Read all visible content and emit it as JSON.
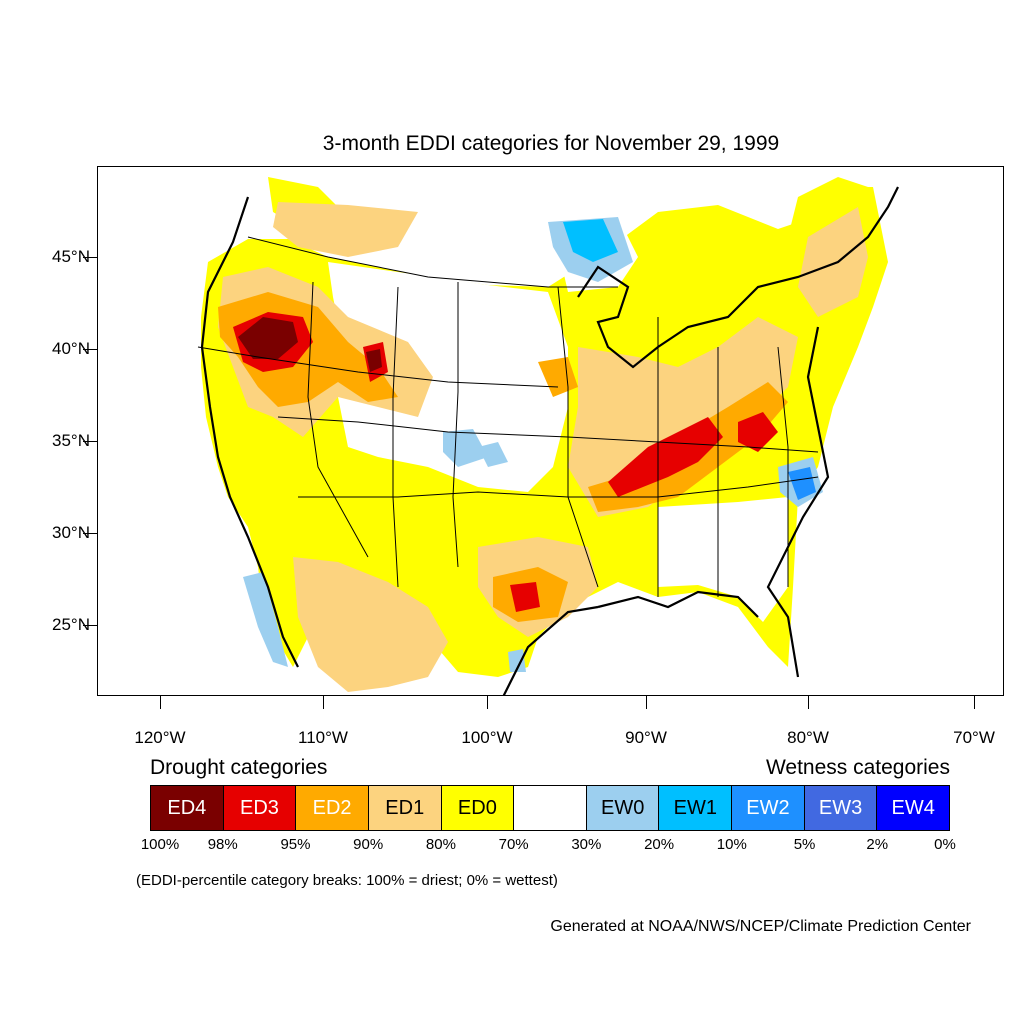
{
  "title": "3-month EDDI categories for November 29, 1999",
  "axes": {
    "lat_labels": [
      "45°N",
      "40°N",
      "35°N",
      "30°N",
      "25°N"
    ],
    "lon_labels": [
      "120°W",
      "110°W",
      "100°W",
      "90°W",
      "80°W",
      "70°W"
    ]
  },
  "legend": {
    "drought_heading": "Drought categories",
    "wetness_heading": "Wetness categories",
    "categories": [
      {
        "label": "ED4",
        "color": "#7a0000",
        "text_color": "#ffffff"
      },
      {
        "label": "ED3",
        "color": "#e60000",
        "text_color": "#ffffff"
      },
      {
        "label": "ED2",
        "color": "#ffaa00",
        "text_color": "#ffffff"
      },
      {
        "label": "ED1",
        "color": "#fcd37f",
        "text_color": "#000000"
      },
      {
        "label": "ED0",
        "color": "#ffff00",
        "text_color": "#000000"
      },
      {
        "label": "",
        "color": "#ffffff",
        "text_color": "#000000"
      },
      {
        "label": "EW0",
        "color": "#9ccfef",
        "text_color": "#000000"
      },
      {
        "label": "EW1",
        "color": "#00bfff",
        "text_color": "#000000"
      },
      {
        "label": "EW2",
        "color": "#1e90ff",
        "text_color": "#ffffff"
      },
      {
        "label": "EW3",
        "color": "#4169e1",
        "text_color": "#ffffff"
      },
      {
        "label": "EW4",
        "color": "#0000ff",
        "text_color": "#ffffff"
      }
    ],
    "breaks": [
      "100%",
      "98%",
      "95%",
      "90%",
      "80%",
      "70%",
      "30%",
      "20%",
      "10%",
      "5%",
      "2%",
      "0%"
    ]
  },
  "note": "(EDDI-percentile category breaks: 100% = driest; 0% = wettest)",
  "credit": "Generated at NOAA/NWS/NCEP/Climate Prediction Center"
}
